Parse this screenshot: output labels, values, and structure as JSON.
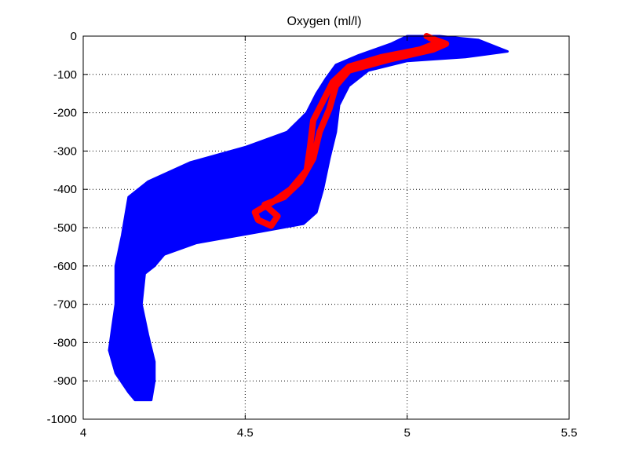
{
  "chart_data": {
    "type": "line",
    "title": "Oxygen (ml/l)",
    "xlabel": "",
    "ylabel": "",
    "xlim": [
      4,
      5.5
    ],
    "ylim": [
      -1000,
      0
    ],
    "xticks": [
      4,
      4.5,
      5,
      5.5
    ],
    "xtick_labels": [
      "4",
      "4.5",
      "5",
      "5.5"
    ],
    "yticks": [
      0,
      -100,
      -200,
      -300,
      -400,
      -500,
      -600,
      -700,
      -800,
      -900,
      -1000
    ],
    "ytick_labels": [
      "0",
      "-100",
      "-200",
      "-300",
      "-400",
      "-500",
      "-600",
      "-700",
      "-800",
      "-900",
      "-1000"
    ],
    "grid": true,
    "grid_style": "dotted",
    "series": [
      {
        "color": "#0000ff",
        "style": "filled-envelope",
        "left_edge": [
          {
            "x": 5.0,
            "y": 0
          },
          {
            "x": 4.95,
            "y": -20
          },
          {
            "x": 4.85,
            "y": -50
          },
          {
            "x": 4.78,
            "y": -75
          },
          {
            "x": 4.75,
            "y": -110
          },
          {
            "x": 4.72,
            "y": -150
          },
          {
            "x": 4.69,
            "y": -200
          },
          {
            "x": 4.63,
            "y": -250
          },
          {
            "x": 4.5,
            "y": -290
          },
          {
            "x": 4.33,
            "y": -330
          },
          {
            "x": 4.2,
            "y": -380
          },
          {
            "x": 4.14,
            "y": -420
          },
          {
            "x": 4.13,
            "y": -470
          },
          {
            "x": 4.12,
            "y": -520
          },
          {
            "x": 4.11,
            "y": -560
          },
          {
            "x": 4.1,
            "y": -600
          },
          {
            "x": 4.1,
            "y": -650
          },
          {
            "x": 4.1,
            "y": -700
          },
          {
            "x": 4.09,
            "y": -760
          },
          {
            "x": 4.08,
            "y": -820
          },
          {
            "x": 4.1,
            "y": -880
          },
          {
            "x": 4.14,
            "y": -930
          },
          {
            "x": 4.16,
            "y": -950
          }
        ],
        "right_edge": [
          {
            "x": 5.1,
            "y": 0
          },
          {
            "x": 5.22,
            "y": -10
          },
          {
            "x": 5.31,
            "y": -40
          },
          {
            "x": 5.18,
            "y": -55
          },
          {
            "x": 5.0,
            "y": -65
          },
          {
            "x": 4.88,
            "y": -90
          },
          {
            "x": 4.82,
            "y": -130
          },
          {
            "x": 4.79,
            "y": -180
          },
          {
            "x": 4.78,
            "y": -250
          },
          {
            "x": 4.76,
            "y": -320
          },
          {
            "x": 4.74,
            "y": -400
          },
          {
            "x": 4.72,
            "y": -460
          },
          {
            "x": 4.68,
            "y": -490
          },
          {
            "x": 4.55,
            "y": -510
          },
          {
            "x": 4.35,
            "y": -540
          },
          {
            "x": 4.25,
            "y": -570
          },
          {
            "x": 4.22,
            "y": -600
          },
          {
            "x": 4.19,
            "y": -620
          },
          {
            "x": 4.18,
            "y": -700
          },
          {
            "x": 4.2,
            "y": -780
          },
          {
            "x": 4.22,
            "y": -850
          },
          {
            "x": 4.22,
            "y": -900
          },
          {
            "x": 4.21,
            "y": -950
          }
        ]
      },
      {
        "color": "#ff0000",
        "style": "line",
        "points": [
          {
            "x": 5.06,
            "y": 0
          },
          {
            "x": 5.1,
            "y": -15
          },
          {
            "x": 5.04,
            "y": -35
          },
          {
            "x": 4.92,
            "y": -55
          },
          {
            "x": 4.82,
            "y": -80
          },
          {
            "x": 4.77,
            "y": -120
          },
          {
            "x": 4.74,
            "y": -170
          },
          {
            "x": 4.71,
            "y": -220
          },
          {
            "x": 4.7,
            "y": -290
          },
          {
            "x": 4.69,
            "y": -350
          },
          {
            "x": 4.64,
            "y": -400
          },
          {
            "x": 4.59,
            "y": -430
          },
          {
            "x": 4.53,
            "y": -460
          },
          {
            "x": 4.54,
            "y": -480
          },
          {
            "x": 4.58,
            "y": -495
          },
          {
            "x": 4.6,
            "y": -470
          },
          {
            "x": 4.56,
            "y": -440
          },
          {
            "x": 4.62,
            "y": -420
          },
          {
            "x": 4.67,
            "y": -380
          },
          {
            "x": 4.71,
            "y": -320
          },
          {
            "x": 4.73,
            "y": -250
          },
          {
            "x": 4.76,
            "y": -190
          },
          {
            "x": 4.78,
            "y": -130
          },
          {
            "x": 4.82,
            "y": -90
          },
          {
            "x": 4.95,
            "y": -60
          },
          {
            "x": 5.08,
            "y": -35
          },
          {
            "x": 5.12,
            "y": -20
          },
          {
            "x": 5.07,
            "y": -5
          }
        ]
      }
    ]
  }
}
